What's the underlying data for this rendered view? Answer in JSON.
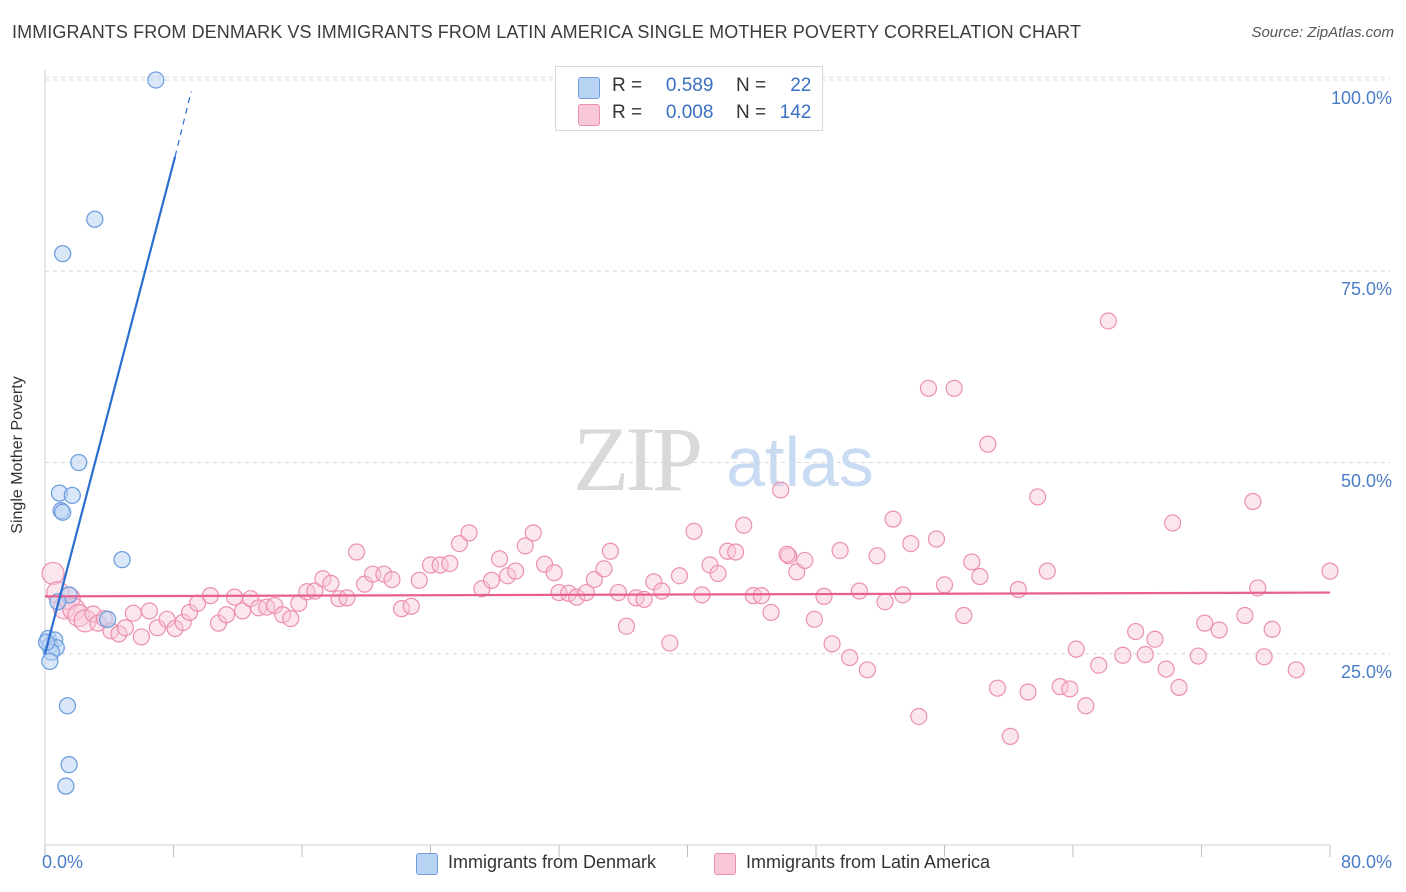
{
  "title": "IMMIGRANTS FROM DENMARK VS IMMIGRANTS FROM LATIN AMERICA SINGLE MOTHER POVERTY CORRELATION CHART",
  "source": "Source: ZipAtlas.com",
  "watermark": {
    "zip": "ZIP",
    "atlas": "atlas"
  },
  "colors": {
    "denmark_fill": "#b9d3f3",
    "denmark_stroke": "#6f9fe0",
    "denmark_line": "#2a6fd0",
    "latam_fill": "#f8c8d8",
    "latam_stroke": "#ec8fb0",
    "latam_line": "#e8608c",
    "axis_text": "#4a7cc8",
    "grid": "#d8d8d8"
  },
  "legend": {
    "rows": [
      {
        "r_label": "R =",
        "r_value": "0.589",
        "n_label": "N =",
        "n_value": "22"
      },
      {
        "r_label": "R =",
        "r_value": "0.008",
        "n_label": "N =",
        "n_value": "142"
      }
    ]
  },
  "bottom_legend": [
    "Immigrants from Denmark",
    "Immigrants from Latin America"
  ],
  "chart_data": {
    "type": "scatter",
    "title": "IMMIGRANTS FROM DENMARK VS IMMIGRANTS FROM LATIN AMERICA SINGLE MOTHER POVERTY CORRELATION CHART",
    "xlabel": "",
    "ylabel": "Single Mother Poverty",
    "xlim": [
      0,
      80
    ],
    "ylim": [
      0,
      105
    ],
    "x_tick_labels": [
      "0.0%",
      "80.0%"
    ],
    "y_ticks": [
      25,
      50,
      75,
      100
    ],
    "y_tick_labels": [
      "25.0%",
      "50.0%",
      "75.0%",
      "100.0%"
    ],
    "grid": true,
    "legend_placement": "top-center",
    "series": [
      {
        "name": "Immigrants from Denmark",
        "r": 0.589,
        "n": 22,
        "trend": {
          "x": [
            0.0,
            8.1
          ],
          "y": [
            25.0,
            90.0
          ],
          "dashed_to": [
            9.1,
            98.5
          ]
        },
        "points": [
          [
            6.9,
            100.0
          ],
          [
            3.1,
            81.8
          ],
          [
            1.1,
            77.3
          ],
          [
            2.1,
            50.0
          ],
          [
            0.9,
            46.0
          ],
          [
            1.7,
            45.7
          ],
          [
            1.0,
            43.7
          ],
          [
            1.1,
            43.5
          ],
          [
            4.8,
            37.3
          ],
          [
            1.5,
            32.7
          ],
          [
            0.8,
            31.8
          ],
          [
            3.9,
            29.5
          ],
          [
            0.2,
            27.0
          ],
          [
            0.6,
            26.8
          ],
          [
            0.3,
            26.0
          ],
          [
            0.7,
            25.8
          ],
          [
            0.4,
            25.2
          ],
          [
            0.1,
            26.5
          ],
          [
            0.3,
            24.0
          ],
          [
            1.4,
            18.2
          ],
          [
            1.5,
            10.5
          ],
          [
            1.3,
            7.7
          ]
        ]
      },
      {
        "name": "Immigrants from Latin America",
        "r": 0.008,
        "n": 142,
        "trend": {
          "x": [
            0.0,
            80.0
          ],
          "y": [
            32.5,
            33.0
          ]
        },
        "points": [
          [
            0.5,
            35.5
          ],
          [
            0.8,
            33.0
          ],
          [
            1.2,
            31.0
          ],
          [
            1.5,
            32.2
          ],
          [
            1.8,
            30.8
          ],
          [
            2.1,
            30.0
          ],
          [
            2.5,
            29.3
          ],
          [
            3.0,
            30.2
          ],
          [
            3.3,
            29.0
          ],
          [
            3.7,
            29.6
          ],
          [
            4.1,
            28.0
          ],
          [
            4.6,
            27.6
          ],
          [
            5.0,
            28.4
          ],
          [
            5.5,
            30.3
          ],
          [
            6.0,
            27.2
          ],
          [
            6.5,
            30.6
          ],
          [
            7.0,
            28.4
          ],
          [
            7.6,
            29.5
          ],
          [
            8.1,
            28.3
          ],
          [
            8.6,
            29.1
          ],
          [
            9.0,
            30.4
          ],
          [
            9.5,
            31.6
          ],
          [
            10.3,
            32.6
          ],
          [
            10.8,
            29.0
          ],
          [
            11.3,
            30.1
          ],
          [
            11.8,
            32.4
          ],
          [
            12.3,
            30.6
          ],
          [
            12.8,
            32.2
          ],
          [
            13.3,
            31.0
          ],
          [
            13.8,
            31.1
          ],
          [
            14.3,
            31.3
          ],
          [
            14.8,
            30.1
          ],
          [
            15.3,
            29.6
          ],
          [
            15.8,
            31.6
          ],
          [
            16.3,
            33.1
          ],
          [
            16.8,
            33.2
          ],
          [
            17.3,
            34.8
          ],
          [
            17.8,
            34.2
          ],
          [
            18.3,
            32.2
          ],
          [
            18.8,
            32.3
          ],
          [
            19.4,
            38.3
          ],
          [
            19.9,
            34.1
          ],
          [
            20.4,
            35.4
          ],
          [
            21.1,
            35.4
          ],
          [
            21.6,
            34.7
          ],
          [
            22.2,
            30.9
          ],
          [
            22.8,
            31.2
          ],
          [
            23.3,
            34.6
          ],
          [
            24.0,
            36.6
          ],
          [
            24.6,
            36.6
          ],
          [
            25.2,
            36.8
          ],
          [
            25.8,
            39.4
          ],
          [
            26.4,
            40.8
          ],
          [
            27.2,
            33.5
          ],
          [
            27.8,
            34.6
          ],
          [
            28.3,
            37.4
          ],
          [
            28.8,
            35.2
          ],
          [
            29.3,
            35.8
          ],
          [
            29.9,
            39.1
          ],
          [
            30.4,
            40.8
          ],
          [
            31.1,
            36.7
          ],
          [
            31.7,
            35.6
          ],
          [
            32.0,
            33.0
          ],
          [
            32.6,
            32.9
          ],
          [
            33.1,
            32.4
          ],
          [
            33.7,
            33.0
          ],
          [
            34.2,
            34.7
          ],
          [
            34.8,
            36.1
          ],
          [
            35.2,
            38.4
          ],
          [
            35.7,
            33.0
          ],
          [
            36.2,
            28.6
          ],
          [
            36.8,
            32.3
          ],
          [
            37.3,
            32.1
          ],
          [
            37.9,
            34.4
          ],
          [
            38.4,
            33.2
          ],
          [
            38.9,
            26.4
          ],
          [
            39.5,
            35.2
          ],
          [
            40.4,
            41.0
          ],
          [
            40.9,
            32.7
          ],
          [
            41.4,
            36.6
          ],
          [
            41.9,
            35.5
          ],
          [
            42.5,
            38.4
          ],
          [
            43.0,
            38.3
          ],
          [
            43.5,
            41.8
          ],
          [
            44.1,
            32.6
          ],
          [
            44.6,
            32.6
          ],
          [
            45.2,
            30.4
          ],
          [
            45.8,
            46.4
          ],
          [
            46.3,
            37.8
          ],
          [
            46.8,
            35.7
          ],
          [
            47.3,
            37.2
          ],
          [
            47.9,
            29.5
          ],
          [
            48.5,
            32.5
          ],
          [
            49.0,
            26.3
          ],
          [
            49.5,
            38.5
          ],
          [
            50.1,
            24.5
          ],
          [
            50.7,
            33.2
          ],
          [
            51.2,
            22.9
          ],
          [
            51.8,
            37.8
          ],
          [
            52.3,
            31.8
          ],
          [
            52.8,
            42.6
          ],
          [
            53.4,
            32.7
          ],
          [
            53.9,
            39.4
          ],
          [
            54.4,
            16.8
          ],
          [
            55.0,
            59.7
          ],
          [
            55.5,
            40.0
          ],
          [
            56.0,
            34.0
          ],
          [
            56.6,
            59.7
          ],
          [
            57.2,
            30.0
          ],
          [
            57.7,
            37.0
          ],
          [
            58.2,
            35.1
          ],
          [
            58.7,
            52.4
          ],
          [
            59.3,
            20.5
          ],
          [
            60.1,
            14.2
          ],
          [
            60.6,
            33.4
          ],
          [
            61.2,
            20.0
          ],
          [
            61.8,
            45.5
          ],
          [
            62.4,
            35.8
          ],
          [
            63.2,
            20.7
          ],
          [
            63.8,
            20.4
          ],
          [
            64.2,
            25.6
          ],
          [
            64.8,
            18.2
          ],
          [
            65.6,
            23.5
          ],
          [
            66.2,
            68.5
          ],
          [
            67.1,
            24.8
          ],
          [
            67.9,
            27.9
          ],
          [
            68.5,
            24.9
          ],
          [
            69.1,
            26.9
          ],
          [
            69.8,
            23.0
          ],
          [
            70.2,
            42.1
          ],
          [
            70.6,
            20.6
          ],
          [
            71.8,
            24.7
          ],
          [
            72.2,
            29.0
          ],
          [
            73.1,
            28.1
          ],
          [
            74.7,
            30.0
          ],
          [
            75.2,
            44.9
          ],
          [
            75.5,
            33.6
          ],
          [
            75.9,
            24.6
          ],
          [
            76.4,
            28.2
          ],
          [
            77.9,
            22.9
          ],
          [
            80.0,
            35.8
          ],
          [
            46.2,
            38.0
          ]
        ]
      }
    ]
  }
}
